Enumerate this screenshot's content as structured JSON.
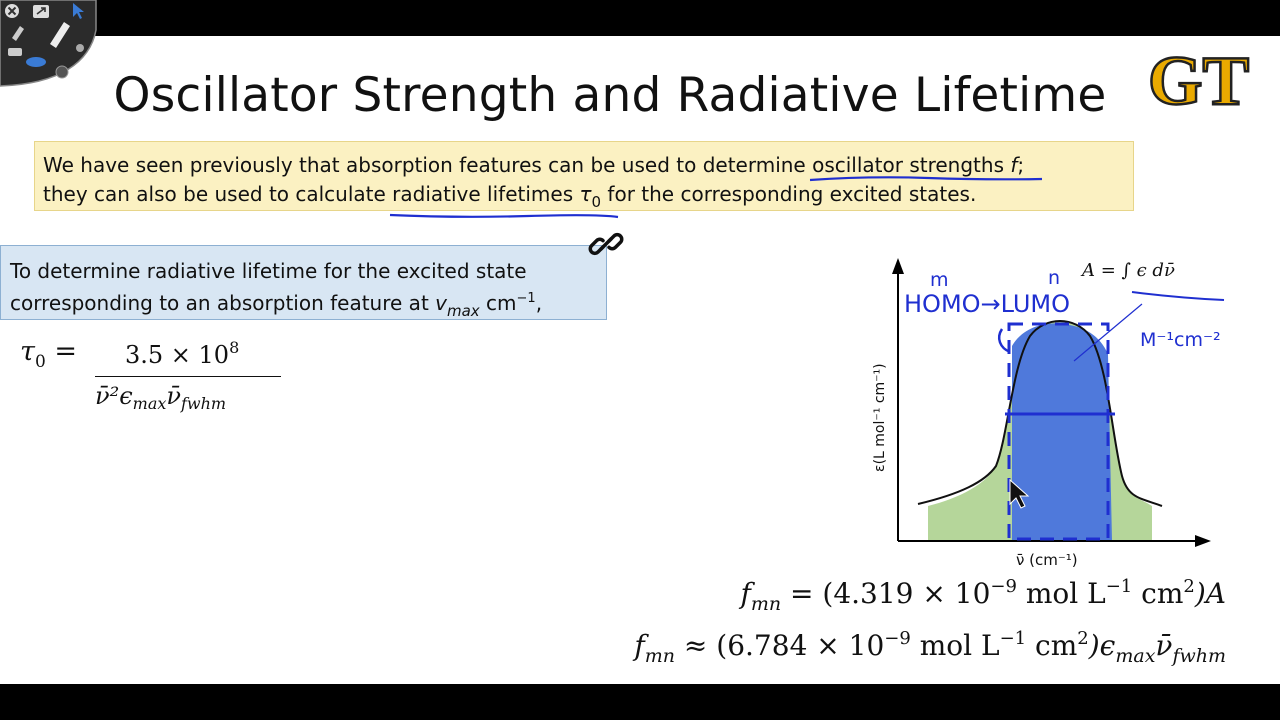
{
  "slide": {
    "title": "Oscillator Strength and Radiative Lifetime",
    "logo_text": "GT"
  },
  "intro": {
    "line1_before": "We have seen previously that absorption features can be used to determine ",
    "line1_term": "oscillator strengths ",
    "line1_f": "f",
    "line1_after": ";",
    "line2_before": "they can also be used to calculate ",
    "line2_term": "radiative lifetimes ",
    "line2_tau": "τ",
    "line2_tau_sub": "0",
    "line2_after": " for the corresponding excited states."
  },
  "box": {
    "line1": "To determine radiative lifetime for the excited state",
    "line2_before": "corresponding to an absorption feature at ",
    "line2_v": "v",
    "line2_v_sub": "max",
    "line2_unit": " cm",
    "line2_unit_sup": "−1",
    "line2_after": ","
  },
  "formula_tau": {
    "lhs": "τ",
    "lhs_sub": "0",
    "eq": " =",
    "numerator": "3.5 × 10",
    "numerator_exp": "8",
    "denominator": "ν̄²ϵ",
    "denominator_sub1": "max",
    "denominator_mid": "ν̄",
    "denominator_sub2": "fwhm"
  },
  "diagram": {
    "y_axis_label": "ε(L mol⁻¹ cm⁻¹)",
    "x_axis_label": "ν̄ (cm⁻¹)",
    "area_formula": "A = ∫ ϵ dν̄",
    "annotation_m": "m",
    "annotation_n": "n",
    "annotation_homo_lumo": "HOMO→LUMO",
    "annotation_units": "M⁻¹cm⁻²"
  },
  "eq_fmn_exact": {
    "lhs": "f",
    "lhs_sub": "mn",
    "rel": " = ",
    "rhs": "(4.319 × 10",
    "rhs_exp": "−9",
    "rhs_units": " mol L",
    "rhs_units_exp": "−1",
    "rhs_units2": " cm",
    "rhs_units2_exp": "2",
    "rhs_tail": ")A"
  },
  "eq_fmn_approx": {
    "lhs": "f",
    "lhs_sub": "mn",
    "rel": " ≈ ",
    "rhs": "(6.784 × 10",
    "rhs_exp": "−9",
    "rhs_units": " mol L",
    "rhs_units_exp": "−1",
    "rhs_units2": " cm",
    "rhs_units2_exp": "2",
    "rhs_tail": ")ϵ",
    "rhs_sub1": "max",
    "rhs_mid": "ν̄",
    "rhs_sub2": "fwhm"
  },
  "toolbar": {
    "icons": [
      "close-icon",
      "share-icon",
      "pen-icon",
      "eraser-icon",
      "laser-icon",
      "highlighter-icon",
      "arrow-icon"
    ]
  },
  "colors": {
    "ink_blue": "#1f2fd0",
    "fill_green": "#b5d69a",
    "fill_blue": "#4f79db",
    "intro_bg": "#fbf1c2",
    "box_bg": "#d8e6f3",
    "gt_gold": "#eaaa00"
  }
}
